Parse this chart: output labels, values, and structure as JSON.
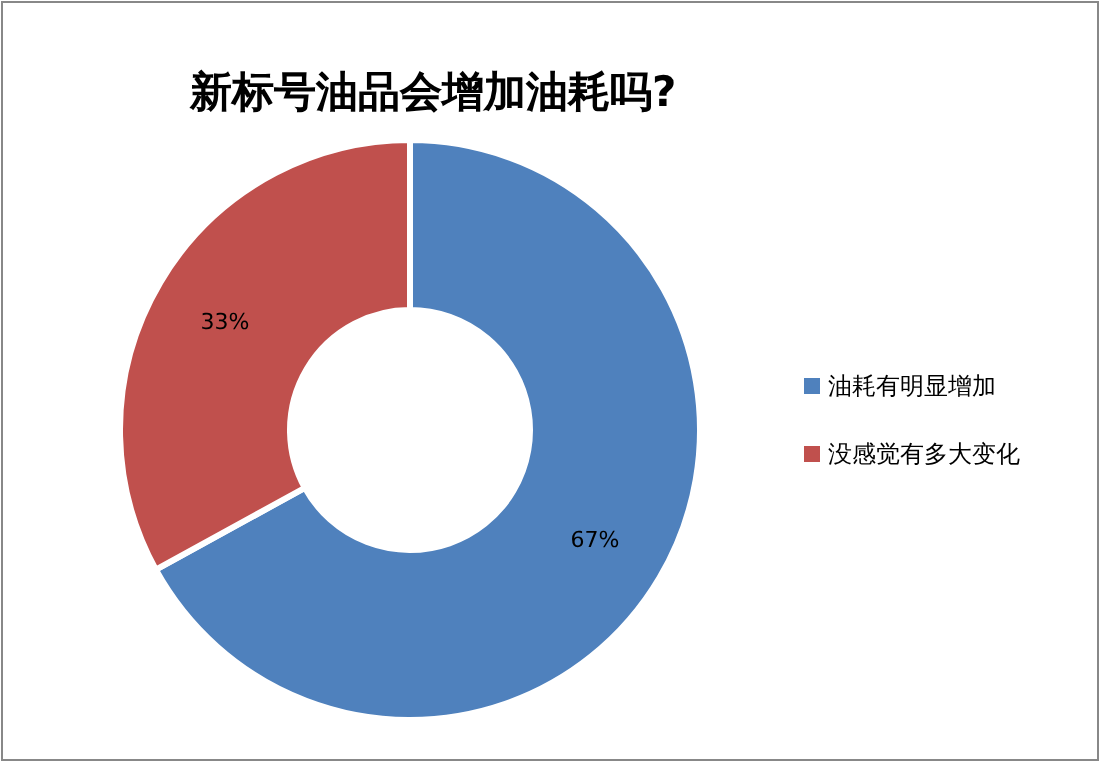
{
  "chart_data": {
    "type": "donut",
    "title": "新标号油品会增加油耗吗?",
    "categories": [
      "油耗有明显增加",
      "没感觉有多大变化"
    ],
    "values": [
      67,
      33
    ],
    "colors": [
      "#4f81bd",
      "#c0504d"
    ],
    "value_labels": [
      "67%",
      "33%"
    ],
    "legend": "right"
  }
}
